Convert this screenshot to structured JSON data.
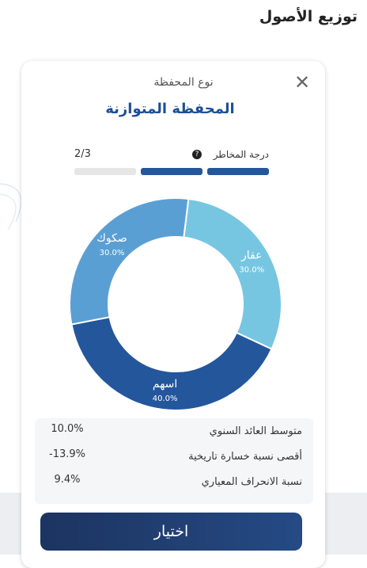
{
  "header": {
    "title": "توزيع الأصول"
  },
  "card": {
    "subtitle": "نوع المحفظة",
    "title": "المحفظة المتوازنة"
  },
  "risk": {
    "label": "درجة المخاطر",
    "level": "2/3"
  },
  "chart_data": {
    "type": "pie",
    "categories": [
      "عقار",
      "اسهم",
      "صكوك"
    ],
    "values": [
      30,
      40,
      30
    ],
    "value_labels": [
      "30.0%",
      "40.0%",
      "30.0%"
    ],
    "colors": [
      "#76c6e2",
      "#24569b",
      "#5a9fd4"
    ]
  },
  "stats": {
    "rows": [
      [
        "متوسط العائد السنوي",
        "10.0%"
      ],
      [
        "أقصى نسبة خسارة تاريخية",
        "-13.9%"
      ],
      [
        "نسبة الانحراف المعياري",
        "9.4%"
      ]
    ]
  },
  "button": {
    "label": "اختيار"
  }
}
